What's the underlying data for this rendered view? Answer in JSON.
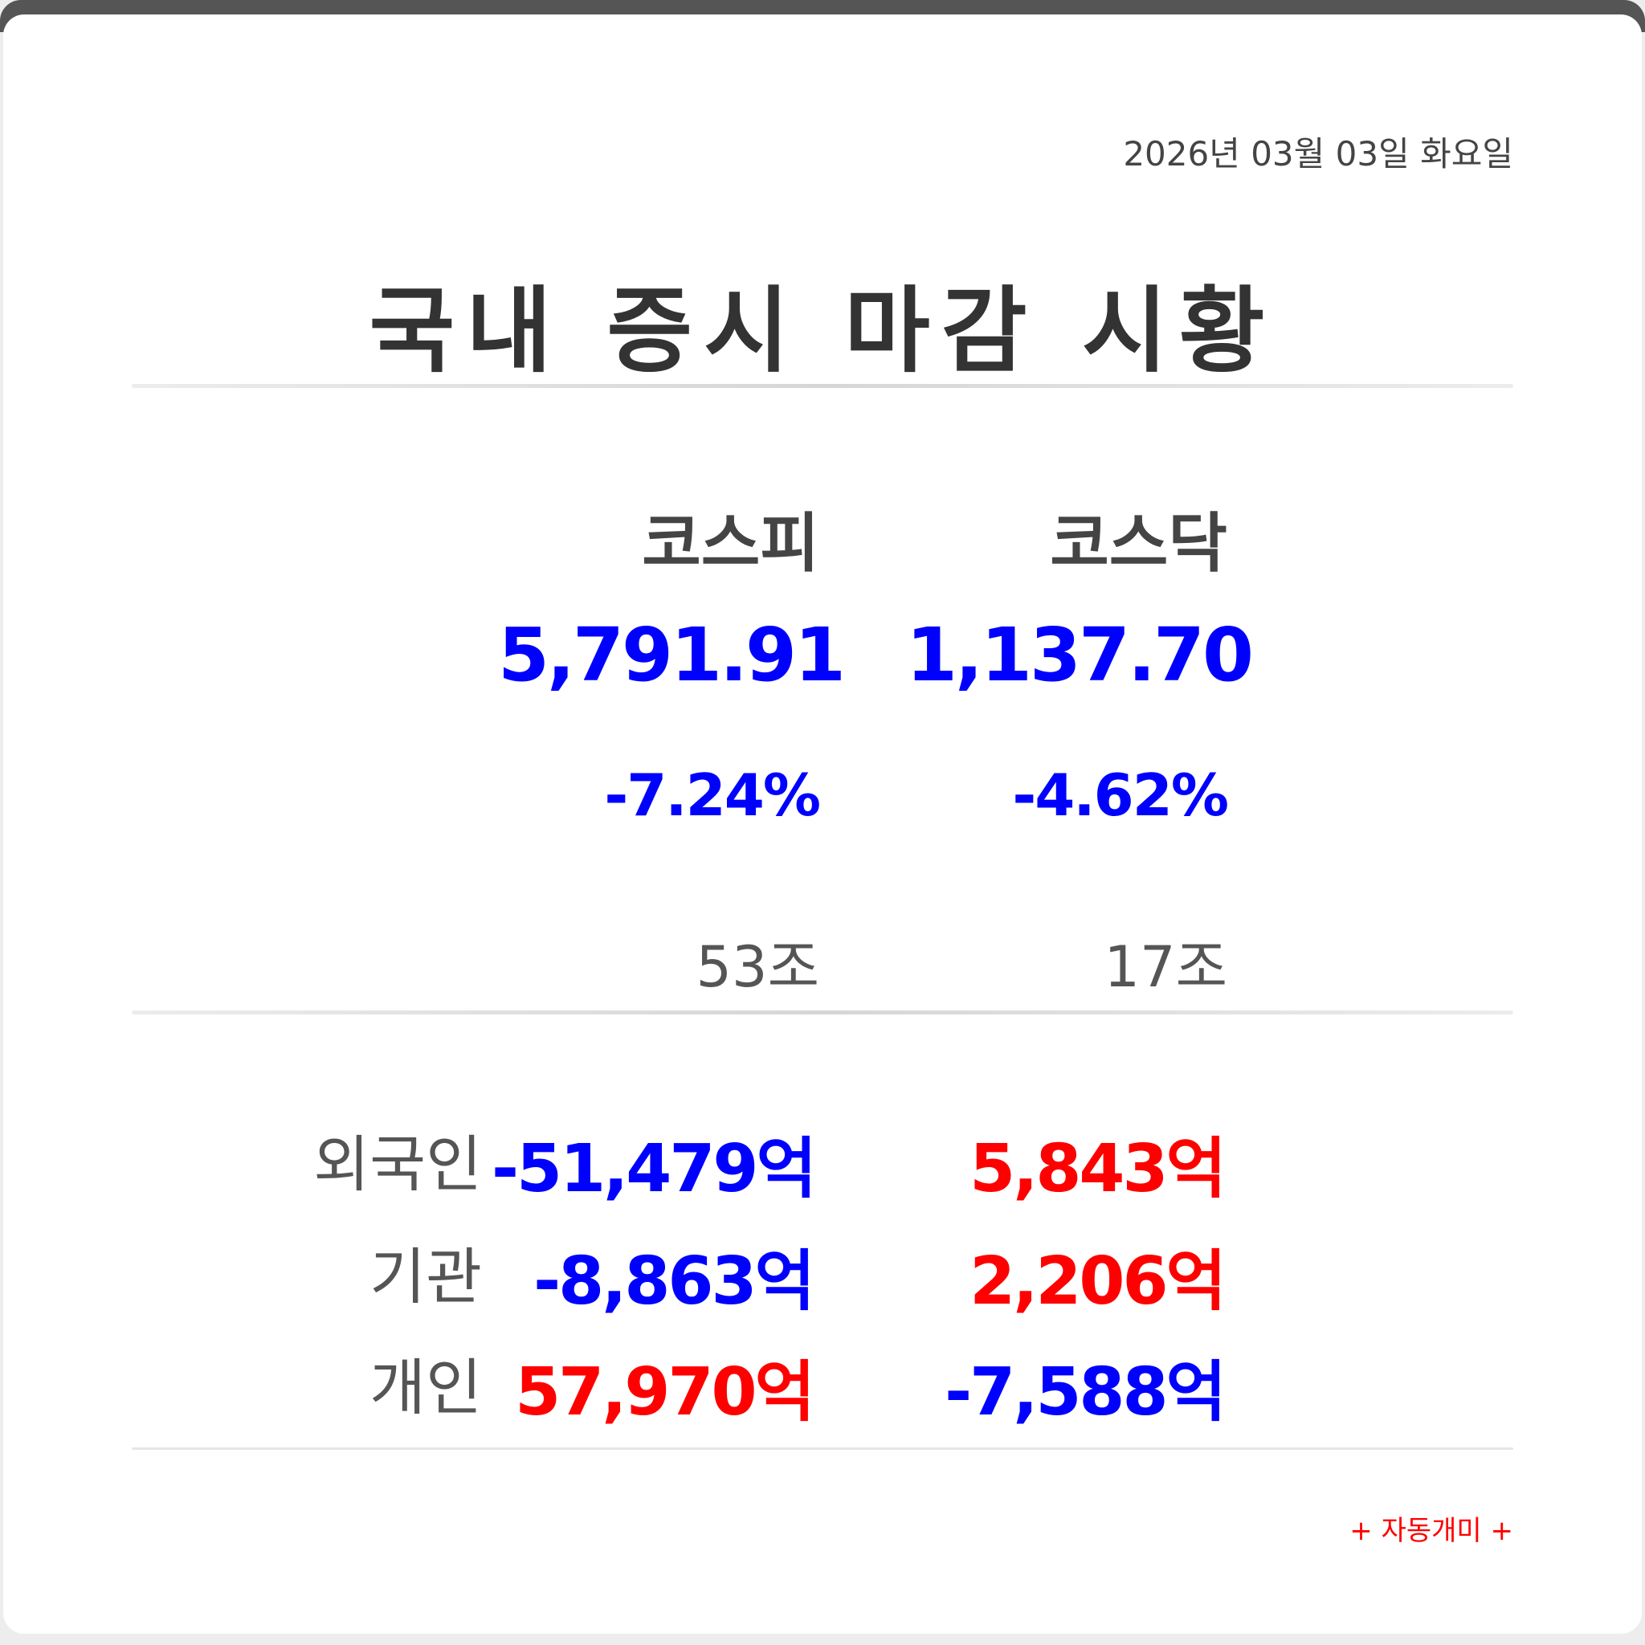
{
  "date": "2026년 03월 03일 화요일",
  "title": "국내 증시 마감 시황",
  "markets": [
    {
      "name": "코스피",
      "index": "5,791.91",
      "change": "-7.24%",
      "volume": "53조"
    },
    {
      "name": "코스닥",
      "index": "1,137.70",
      "change": "-4.62%",
      "volume": "17조"
    }
  ],
  "investors": [
    {
      "label": "외국인",
      "kospi": "-51,479억",
      "kosdaq": "5,843억"
    },
    {
      "label": "기관",
      "kospi": "-8,863억",
      "kosdaq": "2,206억"
    },
    {
      "label": "개인",
      "kospi": "57,970억",
      "kosdaq": "-7,588억"
    }
  ],
  "footer": "+ 자동개미 +",
  "colors": {
    "negative": "#0000ff",
    "positive": "#ff0000",
    "text": "#333333",
    "frame": "#555555"
  }
}
